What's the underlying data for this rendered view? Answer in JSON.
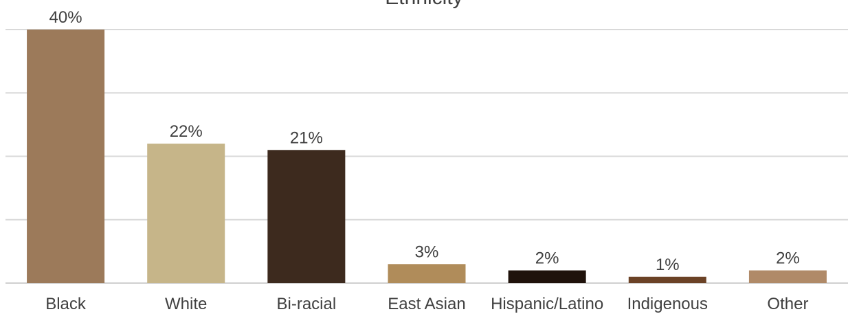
{
  "chart_data": {
    "type": "bar",
    "title": "Ethnicity",
    "xlabel": "",
    "ylabel": "",
    "ylim": [
      0,
      40
    ],
    "grid": true,
    "categories": [
      "Black",
      "White",
      "Bi-racial",
      "East Asian",
      "Hispanic/Latino",
      "Indigenous",
      "Other"
    ],
    "values": [
      40,
      22,
      21,
      3,
      2,
      1,
      2
    ],
    "value_labels": [
      "40%",
      "22%",
      "21%",
      "3%",
      "2%",
      "1%",
      "2%"
    ],
    "colors": [
      "#9C7A5A",
      "#C6B589",
      "#3D2A1E",
      "#B08C5A",
      "#1F120B",
      "#6B4226",
      "#B08A68"
    ]
  }
}
